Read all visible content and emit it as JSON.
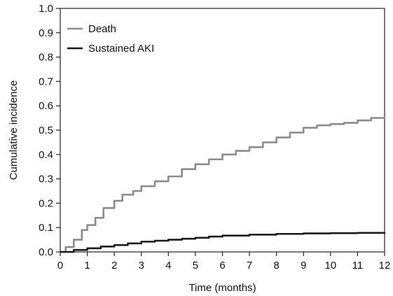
{
  "chart_data": {
    "type": "line",
    "title": "",
    "xlabel": "Time (months)",
    "ylabel": "Cumulative incidence",
    "xlim": [
      0,
      12
    ],
    "ylim": [
      0,
      1.0
    ],
    "x_ticks": [
      0,
      1,
      2,
      3,
      4,
      5,
      6,
      7,
      8,
      9,
      10,
      11,
      12
    ],
    "y_ticks": [
      0.0,
      0.1,
      0.2,
      0.3,
      0.4,
      0.5,
      0.6,
      0.7,
      0.8,
      0.9,
      1.0
    ],
    "x_tick_labels": [
      "0",
      "1",
      "2",
      "3",
      "4",
      "5",
      "6",
      "7",
      "8",
      "9",
      "10",
      "11",
      "12"
    ],
    "y_tick_labels": [
      "0.0",
      "0.1",
      "0.2",
      "0.3",
      "0.4",
      "0.5",
      "0.6",
      "0.7",
      "0.8",
      "0.9",
      "1.0"
    ],
    "grid": false,
    "legend_position": "top-left",
    "series": [
      {
        "name": "Death",
        "color": "#8c8c8c",
        "x": [
          0,
          0.2,
          0.5,
          0.8,
          1.0,
          1.3,
          1.6,
          2.0,
          2.3,
          2.7,
          3.0,
          3.5,
          4.0,
          4.5,
          5.0,
          5.5,
          6.0,
          6.5,
          7.0,
          7.5,
          8.0,
          8.5,
          9.0,
          9.5,
          10.0,
          10.5,
          11.0,
          11.5,
          12.0
        ],
        "y": [
          0,
          0.02,
          0.05,
          0.09,
          0.11,
          0.14,
          0.18,
          0.21,
          0.235,
          0.25,
          0.27,
          0.29,
          0.31,
          0.34,
          0.36,
          0.38,
          0.4,
          0.415,
          0.43,
          0.45,
          0.47,
          0.49,
          0.51,
          0.52,
          0.525,
          0.53,
          0.54,
          0.55,
          0.56
        ]
      },
      {
        "name": "Sustained AKI",
        "color": "#1a1a1a",
        "x": [
          0,
          0.5,
          1.0,
          1.5,
          2.0,
          2.5,
          3.0,
          3.5,
          4.0,
          4.5,
          5.0,
          5.5,
          6.0,
          7.0,
          8.0,
          9.0,
          10.0,
          11.0,
          12.0
        ],
        "y": [
          0,
          0.008,
          0.015,
          0.022,
          0.028,
          0.035,
          0.042,
          0.046,
          0.05,
          0.054,
          0.058,
          0.063,
          0.067,
          0.071,
          0.074,
          0.076,
          0.077,
          0.078,
          0.08
        ]
      }
    ]
  }
}
